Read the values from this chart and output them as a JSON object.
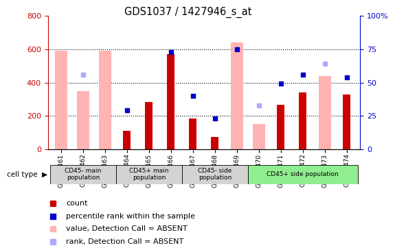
{
  "title": "GDS1037 / 1427946_s_at",
  "samples": [
    "GSM37461",
    "GSM37462",
    "GSM37463",
    "GSM37464",
    "GSM37465",
    "GSM37466",
    "GSM37467",
    "GSM37468",
    "GSM37469",
    "GSM37470",
    "GSM37471",
    "GSM37472",
    "GSM37473",
    "GSM37474"
  ],
  "count_values": [
    null,
    null,
    null,
    110,
    285,
    570,
    185,
    75,
    null,
    null,
    265,
    340,
    null,
    330
  ],
  "absent_value": [
    590,
    350,
    590,
    null,
    null,
    null,
    null,
    null,
    640,
    150,
    null,
    null,
    440,
    null
  ],
  "blue_sq": [
    null,
    null,
    null,
    29,
    null,
    73,
    40,
    23,
    75,
    null,
    49,
    56,
    null,
    54
  ],
  "light_sq": [
    null,
    56,
    null,
    null,
    null,
    null,
    null,
    null,
    null,
    33,
    null,
    null,
    64,
    null
  ],
  "ylim_left": [
    0,
    800
  ],
  "ylim_right": [
    0,
    100
  ],
  "bar_color_count": "#cc0000",
  "bar_color_absent": "#ffb3b3",
  "square_color_rank": "#0000cc",
  "square_color_absent_rank": "#aaaaff",
  "axis_color_left": "#cc0000",
  "axis_color_right": "#0000cc",
  "group_colors": [
    "#d3d3d3",
    "#d3d3d3",
    "#d3d3d3",
    "#90ee90"
  ],
  "group_labels": [
    "CD45- main\npopulation",
    "CD45+ main\npopulation",
    "CD45- side\npopulation",
    "CD45+ side population"
  ],
  "group_ranges": [
    [
      0,
      2
    ],
    [
      3,
      5
    ],
    [
      6,
      8
    ],
    [
      9,
      13
    ]
  ]
}
